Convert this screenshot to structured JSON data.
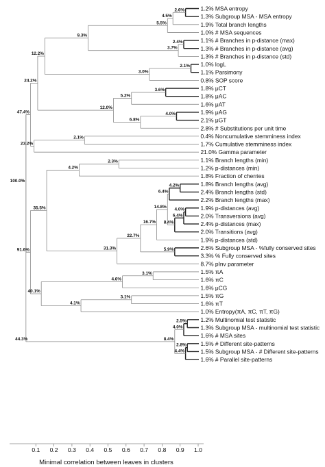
{
  "chart_data": {
    "type": "dendrogram",
    "xlabel": "Minimal correlation between leaves in clusters",
    "xlim": [
      0.0,
      1.0
    ],
    "xticks": [
      "0.1",
      "0.2",
      "0.3",
      "0.4",
      "0.5",
      "0.6",
      "0.7",
      "0.8",
      "0.9",
      "1.0"
    ],
    "leaves": [
      "1.2% MSA entropy",
      "1.3% Subgroup MSA - MSA entropy",
      "1.9% Total branch lengths",
      "1.0% # MSA sequences",
      "1.1% # Branches in p-distance (max)",
      "1.3% # Branches in p-distance (avg)",
      "1.3% # Branches in p-distance (std)",
      "1.0% logL",
      "1.1% Parsimony",
      "0.8% SOP score",
      "1.8% μCT",
      "1.8% μAC",
      "1.6% μAT",
      "1.9% μAG",
      "2.1% μGT",
      "2.8% # Substitutions per unit time",
      "0.4% Noncumulative stemminess index",
      "1.7% Cumulative stemminess index",
      "21.0% Gamma parameter",
      "1.1% Branch lengths (min)",
      "1.2% p-distances (min)",
      "1.8% Fraction of cherries",
      "1.8% Branch lengths (avg)",
      "2.4% Branch lengths (std)",
      "2.2% Branch lengths (max)",
      "1.9% p-distances (avg)",
      "2.0% Transversions (avg)",
      "2.4% p-distances (max)",
      "2.0% Transitions (avg)",
      "1.9% p-distances (std)",
      "2.6% Subgroup MSA - %fully conserved sites",
      "3.3% % Fully conserved sites",
      "8.7% pInv parameter",
      "1.5% πA",
      "1.6% πC",
      "1.6% μCG",
      "1.5% πG",
      "1.6% πT",
      "1.0% Entropy(πA, πC, πT, πG)",
      "1.2% Multinomial test statistic",
      "1.3% Subgroup MSA - multinomial test statistic",
      "1.6% # MSA sites",
      "1.5% # Different site-patterns",
      "1.5% Subgroup MSA - # Different site-patterns",
      "1.6% # Parallel site-patterns"
    ],
    "nodes": [
      {
        "label": "2.6%",
        "height": 0.93
      },
      {
        "label": "4.5%",
        "height": 0.86
      },
      {
        "label": "5.5%",
        "height": 0.83
      },
      {
        "label": "2.4%",
        "height": 0.92
      },
      {
        "label": "3.7%",
        "height": 0.89
      },
      {
        "label": "9.3%",
        "height": 0.39
      },
      {
        "label": "2.1%",
        "height": 0.96
      },
      {
        "label": "3.0%",
        "height": 0.73
      },
      {
        "label": "12.2%",
        "height": 0.15
      },
      {
        "label": "3.6%",
        "height": 0.82
      },
      {
        "label": "5.2%",
        "height": 0.63
      },
      {
        "label": "4.0%",
        "height": 0.88
      },
      {
        "label": "6.8%",
        "height": 0.68
      },
      {
        "label": "12.0%",
        "height": 0.53
      },
      {
        "label": "24.2%",
        "height": 0.11
      },
      {
        "label": "2.1%",
        "height": 0.37
      },
      {
        "label": "23.2%",
        "height": 0.09
      },
      {
        "label": "47.4%",
        "height": 0.07
      },
      {
        "label": "2.3%",
        "height": 0.56
      },
      {
        "label": "4.2%",
        "height": 0.34
      },
      {
        "label": "4.2%",
        "height": 0.9
      },
      {
        "label": "6.4%",
        "height": 0.84
      },
      {
        "label": "4.0%",
        "height": 0.93
      },
      {
        "label": "6.4%",
        "height": 0.92
      },
      {
        "label": "8.4%",
        "height": 0.87
      },
      {
        "label": "14.8%",
        "height": 0.83
      },
      {
        "label": "16.7%",
        "height": 0.77
      },
      {
        "label": "5.9%",
        "height": 0.87
      },
      {
        "label": "22.7%",
        "height": 0.68
      },
      {
        "label": "31.3%",
        "height": 0.55
      },
      {
        "label": "35.5%",
        "height": 0.16
      },
      {
        "label": "3.1%",
        "height": 0.75
      },
      {
        "label": "4.6%",
        "height": 0.58
      },
      {
        "label": "3.1%",
        "height": 0.63
      },
      {
        "label": "4.1%",
        "height": 0.35
      },
      {
        "label": "40.1%",
        "height": 0.13
      },
      {
        "label": "91.6%",
        "height": 0.07
      },
      {
        "label": "2.5%",
        "height": 0.94
      },
      {
        "label": "4.0%",
        "height": 0.92
      },
      {
        "label": "2.8%",
        "height": 0.94
      },
      {
        "label": "4.4%",
        "height": 0.93
      },
      {
        "label": "8.4%",
        "height": 0.87
      },
      {
        "label": "44.3%",
        "height": 0.06
      },
      {
        "label": "100.0%",
        "height": 0.045
      }
    ]
  }
}
